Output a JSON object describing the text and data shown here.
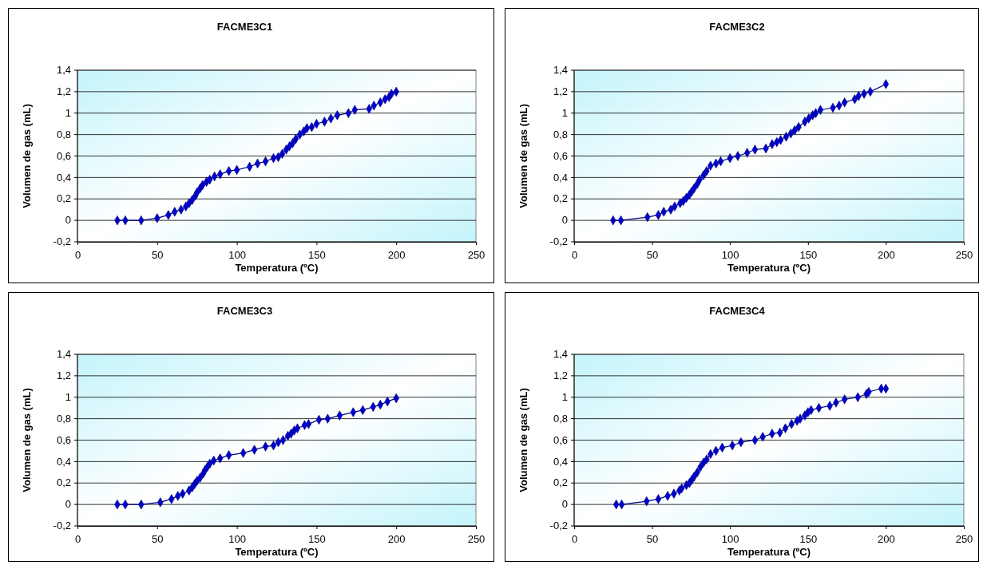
{
  "chart_data": [
    {
      "type": "line",
      "title": "FACME3C1",
      "xlabel": "Temperatura (ºC)",
      "ylabel": "Volumen de gas (mL)",
      "marker": "diamond",
      "grid": "y",
      "color": "#0000cc",
      "xlim": [
        0,
        250
      ],
      "xticks": [
        0,
        50,
        100,
        150,
        200,
        250
      ],
      "ylim": [
        -0.2,
        1.4
      ],
      "yticks": [
        {
          "value": -0.2,
          "label": "-0,2"
        },
        {
          "value": 0,
          "label": "0"
        },
        {
          "value": 0.2,
          "label": "0,2"
        },
        {
          "value": 0.4,
          "label": "0,4"
        },
        {
          "value": 0.6,
          "label": "0,6"
        },
        {
          "value": 0.8,
          "label": "0,8"
        },
        {
          "value": 1,
          "label": "1"
        },
        {
          "value": 1.2,
          "label": "1,2"
        },
        {
          "value": 1.4,
          "label": "1,4"
        }
      ],
      "x": [
        25,
        30,
        40,
        50,
        57,
        61,
        65,
        68,
        70,
        72,
        74,
        75,
        77,
        78.5,
        81,
        83,
        86,
        89.5,
        95,
        100,
        108,
        113,
        118,
        123,
        126,
        128.5,
        131,
        133,
        135,
        137,
        139.5,
        142,
        144,
        147,
        150,
        155,
        159,
        163,
        170,
        174,
        183,
        186,
        190,
        193,
        195.5,
        197,
        200
      ],
      "values": [
        0,
        0,
        0,
        0.02,
        0.05,
        0.08,
        0.1,
        0.13,
        0.16,
        0.19,
        0.23,
        0.26,
        0.3,
        0.33,
        0.36,
        0.38,
        0.41,
        0.43,
        0.46,
        0.47,
        0.5,
        0.53,
        0.55,
        0.58,
        0.59,
        0.62,
        0.66,
        0.69,
        0.72,
        0.76,
        0.8,
        0.83,
        0.86,
        0.87,
        0.9,
        0.92,
        0.95,
        0.98,
        1,
        1.03,
        1.04,
        1.07,
        1.1,
        1.13,
        1.15,
        1.18,
        1.2
      ]
    },
    {
      "type": "line",
      "title": "FACME3C2",
      "xlabel": "Temperatura (ºC)",
      "ylabel": "Volumen de gas (mL)",
      "marker": "diamond",
      "grid": "y",
      "color": "#0000cc",
      "xlim": [
        0,
        250
      ],
      "xticks": [
        0,
        50,
        100,
        150,
        200,
        250
      ],
      "ylim": [
        -0.2,
        1.4
      ],
      "yticks": [
        {
          "value": -0.2,
          "label": "-0,2"
        },
        {
          "value": 0,
          "label": "0"
        },
        {
          "value": 0.2,
          "label": "0,2"
        },
        {
          "value": 0.4,
          "label": "0,4"
        },
        {
          "value": 0.6,
          "label": "0,6"
        },
        {
          "value": 0.8,
          "label": "0,8"
        },
        {
          "value": 1,
          "label": "1"
        },
        {
          "value": 1.2,
          "label": "1,2"
        },
        {
          "value": 1.4,
          "label": "1,4"
        }
      ],
      "x": [
        25,
        30,
        47,
        54,
        57.5,
        62,
        64.5,
        68,
        70,
        72,
        74,
        75.5,
        77,
        79,
        80.5,
        83,
        85,
        87.5,
        91,
        94,
        100,
        105,
        111,
        116,
        123,
        127,
        130,
        132.5,
        136,
        139,
        141.5,
        144,
        148,
        150.5,
        153,
        155,
        158,
        166,
        170,
        173.5,
        180,
        182.5,
        186,
        190,
        200
      ],
      "values": [
        0,
        0,
        0.03,
        0.05,
        0.08,
        0.1,
        0.13,
        0.16,
        0.18,
        0.21,
        0.24,
        0.27,
        0.3,
        0.34,
        0.38,
        0.42,
        0.46,
        0.51,
        0.53,
        0.55,
        0.58,
        0.6,
        0.63,
        0.66,
        0.67,
        0.71,
        0.73,
        0.75,
        0.78,
        0.81,
        0.84,
        0.87,
        0.92,
        0.95,
        0.98,
        1,
        1.03,
        1.05,
        1.07,
        1.1,
        1.13,
        1.16,
        1.18,
        1.2,
        1.27
      ]
    },
    {
      "type": "line",
      "title": "FACME3C3",
      "xlabel": "Temperatura (ºC)",
      "ylabel": "Volumen de gas (mL)",
      "marker": "diamond",
      "grid": "y",
      "color": "#0000cc",
      "xlim": [
        0,
        250
      ],
      "xticks": [
        0,
        50,
        100,
        150,
        200,
        250
      ],
      "ylim": [
        -0.2,
        1.4
      ],
      "yticks": [
        {
          "value": -0.2,
          "label": "-0,2"
        },
        {
          "value": 0,
          "label": "0"
        },
        {
          "value": 0.2,
          "label": "0,2"
        },
        {
          "value": 0.4,
          "label": "0,4"
        },
        {
          "value": 0.6,
          "label": "0,6"
        },
        {
          "value": 0.8,
          "label": "0,8"
        },
        {
          "value": 1,
          "label": "1"
        },
        {
          "value": 1.2,
          "label": "1,2"
        },
        {
          "value": 1.4,
          "label": "1,4"
        }
      ],
      "x": [
        25,
        30,
        40,
        52,
        59,
        63,
        66,
        70,
        72,
        73.5,
        75,
        77,
        79,
        80,
        81.5,
        83,
        85.5,
        89.5,
        95,
        104,
        111,
        118,
        123,
        126,
        129,
        132,
        134,
        136,
        138,
        142.5,
        145,
        151.5,
        157,
        164.5,
        173,
        179,
        185.5,
        190,
        194.5,
        200
      ],
      "values": [
        0,
        0,
        0,
        0.02,
        0.05,
        0.08,
        0.1,
        0.13,
        0.16,
        0.19,
        0.22,
        0.25,
        0.29,
        0.32,
        0.35,
        0.38,
        0.41,
        0.43,
        0.46,
        0.48,
        0.51,
        0.54,
        0.55,
        0.58,
        0.6,
        0.64,
        0.66,
        0.69,
        0.71,
        0.74,
        0.75,
        0.79,
        0.8,
        0.83,
        0.86,
        0.88,
        0.91,
        0.93,
        0.96,
        0.99
      ]
    },
    {
      "type": "line",
      "title": "FACME3C4",
      "xlabel": "Temperatura (ºC)",
      "ylabel": "Volumen de gas (mL)",
      "marker": "diamond",
      "grid": "y",
      "color": "#0000cc",
      "xlim": [
        0,
        250
      ],
      "xticks": [
        0,
        50,
        100,
        150,
        200,
        250
      ],
      "ylim": [
        -0.2,
        1.4
      ],
      "yticks": [
        {
          "value": -0.2,
          "label": "-0,2"
        },
        {
          "value": 0,
          "label": "0"
        },
        {
          "value": 0.2,
          "label": "0,2"
        },
        {
          "value": 0.4,
          "label": "0,4"
        },
        {
          "value": 0.6,
          "label": "0,6"
        },
        {
          "value": 0.8,
          "label": "0,8"
        },
        {
          "value": 1,
          "label": "1"
        },
        {
          "value": 1.2,
          "label": "1,2"
        },
        {
          "value": 1.4,
          "label": "1,4"
        }
      ],
      "x": [
        27,
        30.5,
        46.5,
        54,
        60,
        64,
        67.5,
        69,
        72,
        74,
        75.5,
        77,
        79,
        81,
        83,
        85,
        87.5,
        91,
        95,
        101.5,
        107,
        116,
        121,
        127,
        132,
        135.5,
        139.5,
        143,
        145,
        148,
        150,
        152,
        157,
        164,
        168,
        173.5,
        182,
        187.5,
        189,
        197,
        200
      ],
      "values": [
        0,
        0,
        0.03,
        0.05,
        0.08,
        0.1,
        0.13,
        0.15,
        0.18,
        0.2,
        0.23,
        0.26,
        0.3,
        0.35,
        0.39,
        0.42,
        0.47,
        0.5,
        0.53,
        0.55,
        0.58,
        0.6,
        0.63,
        0.66,
        0.67,
        0.71,
        0.75,
        0.78,
        0.8,
        0.83,
        0.86,
        0.88,
        0.9,
        0.92,
        0.95,
        0.98,
        1,
        1.03,
        1.05,
        1.08,
        1.08
      ]
    }
  ]
}
